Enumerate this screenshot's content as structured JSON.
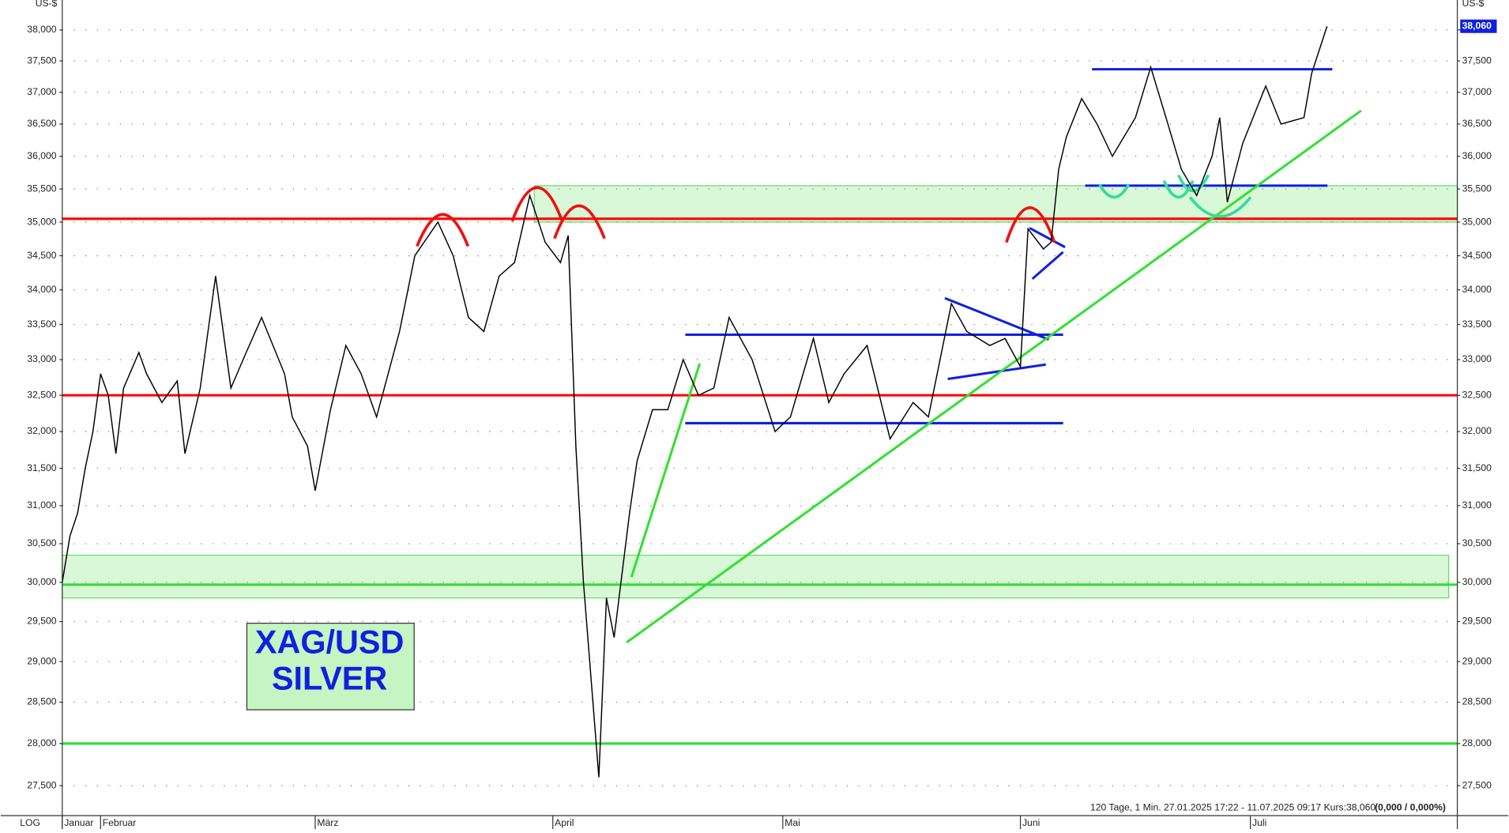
{
  "chart_data": {
    "type": "line",
    "log_scale": true,
    "grid": true,
    "color": "#000000",
    "y_label": "US-$",
    "scale_label": "LOG",
    "x": [
      "2025-01-27",
      "2025-01-28",
      "2025-01-29",
      "2025-01-30",
      "2025-01-31",
      "2025-02-01",
      "2025-02-02",
      "2025-02-03",
      "2025-02-04",
      "2025-02-06",
      "2025-02-07",
      "2025-02-09",
      "2025-02-11",
      "2025-02-12",
      "2025-02-14",
      "2025-02-16",
      "2025-02-18",
      "2025-02-20",
      "2025-02-22",
      "2025-02-25",
      "2025-02-26",
      "2025-02-28",
      "2025-03-01",
      "2025-03-03",
      "2025-03-05",
      "2025-03-07",
      "2025-03-09",
      "2025-03-12",
      "2025-03-14",
      "2025-03-17",
      "2025-03-19",
      "2025-03-21",
      "2025-03-23",
      "2025-03-25",
      "2025-03-27",
      "2025-03-29",
      "2025-03-31",
      "2025-04-02",
      "2025-04-03",
      "2025-04-04",
      "2025-04-05",
      "2025-04-07",
      "2025-04-08",
      "2025-04-09",
      "2025-04-11",
      "2025-04-12",
      "2025-04-14",
      "2025-04-16",
      "2025-04-18",
      "2025-04-20",
      "2025-04-22",
      "2025-04-24",
      "2025-04-27",
      "2025-04-30",
      "2025-05-02",
      "2025-05-05",
      "2025-05-07",
      "2025-05-09",
      "2025-05-12",
      "2025-05-15",
      "2025-05-18",
      "2025-05-20",
      "2025-05-23",
      "2025-05-25",
      "2025-05-28",
      "2025-05-30",
      "2025-06-01",
      "2025-06-02",
      "2025-06-04",
      "2025-06-05",
      "2025-06-06",
      "2025-06-07",
      "2025-06-09",
      "2025-06-11",
      "2025-06-13",
      "2025-06-16",
      "2025-06-18",
      "2025-06-20",
      "2025-06-22",
      "2025-06-24",
      "2025-06-26",
      "2025-06-27",
      "2025-06-28",
      "2025-06-30",
      "2025-07-03",
      "2025-07-05",
      "2025-07-08",
      "2025-07-09",
      "2025-07-11"
    ],
    "values": [
      30.0,
      30.6,
      30.9,
      31.5,
      32.0,
      32.8,
      32.5,
      31.7,
      32.6,
      33.1,
      32.8,
      32.4,
      32.7,
      31.7,
      32.6,
      34.2,
      32.6,
      33.1,
      33.6,
      32.8,
      32.2,
      31.8,
      31.2,
      32.3,
      33.2,
      32.8,
      32.2,
      33.4,
      34.5,
      35.0,
      34.5,
      33.6,
      33.4,
      34.2,
      34.4,
      35.4,
      34.7,
      34.4,
      34.8,
      31.8,
      30.0,
      27.6,
      29.8,
      29.3,
      30.9,
      31.6,
      32.3,
      32.3,
      33.0,
      32.5,
      32.6,
      33.6,
      33.0,
      32.0,
      32.2,
      33.3,
      32.4,
      32.8,
      33.2,
      31.9,
      32.4,
      32.2,
      33.8,
      33.4,
      33.2,
      33.3,
      32.9,
      34.9,
      34.6,
      34.7,
      35.8,
      36.3,
      36.9,
      36.5,
      36.0,
      36.6,
      37.4,
      36.6,
      35.8,
      35.4,
      36.0,
      36.6,
      35.3,
      36.2,
      37.1,
      36.5,
      36.6,
      37.3,
      38.06
    ],
    "last_value_label": "38,060",
    "xlim": [
      "2025-01-27",
      "2025-07-28"
    ],
    "xticks": [
      {
        "value": "2025-01-27",
        "label": "Januar"
      },
      {
        "value": "2025-02-01",
        "label": "Februar"
      },
      {
        "value": "2025-03-01",
        "label": "März"
      },
      {
        "value": "2025-04-01",
        "label": "April"
      },
      {
        "value": "2025-05-01",
        "label": "Mai"
      },
      {
        "value": "2025-06-01",
        "label": "Juni"
      },
      {
        "value": "2025-07-01",
        "label": "Juli"
      }
    ],
    "ylim": [
      27.15,
      38.49
    ],
    "yticks": [
      {
        "value": 27.5,
        "label": "27,500"
      },
      {
        "value": 28,
        "label": "28,000"
      },
      {
        "value": 28.5,
        "label": "28,500"
      },
      {
        "value": 29,
        "label": "29,000"
      },
      {
        "value": 29.5,
        "label": "29,500"
      },
      {
        "value": 30,
        "label": "30,000"
      },
      {
        "value": 30.5,
        "label": "30,500"
      },
      {
        "value": 31,
        "label": "31,000"
      },
      {
        "value": 31.5,
        "label": "31,500"
      },
      {
        "value": 32,
        "label": "32,000"
      },
      {
        "value": 32.5,
        "label": "32,500"
      },
      {
        "value": 33,
        "label": "33,000"
      },
      {
        "value": 33.5,
        "label": "33,500"
      },
      {
        "value": 34,
        "label": "34,000"
      },
      {
        "value": 34.5,
        "label": "34,500"
      },
      {
        "value": 35,
        "label": "35,000"
      },
      {
        "value": 35.5,
        "label": "35,500"
      },
      {
        "value": 36,
        "label": "36,000"
      },
      {
        "value": 36.5,
        "label": "36,500"
      },
      {
        "value": 37,
        "label": "37,000"
      },
      {
        "value": 37.5,
        "label": "37,500"
      },
      {
        "value": 38,
        "label": "38,000"
      }
    ],
    "hlines": [
      {
        "value": 35.05,
        "color": "#ff0000"
      },
      {
        "value": 32.5,
        "color": "#ff0000"
      },
      {
        "value": 29.97,
        "color": "#33dd33"
      },
      {
        "value": 28.0,
        "color": "#33dd33"
      }
    ],
    "zones": [
      {
        "range": [
          35.0,
          35.55
        ],
        "color": "#d8f8d8"
      },
      {
        "range": [
          29.8,
          30.35
        ],
        "color": "#d8f8d8"
      }
    ],
    "box_title": "XAG/USD",
    "box_subtitle": "SILVER",
    "footer": "120 Tage, 1 Min. 27.01.2025 17:22 - 11.07.2025 09:17  Kurs:38,060",
    "footer_change": "(0,000 / 0,000%)"
  }
}
